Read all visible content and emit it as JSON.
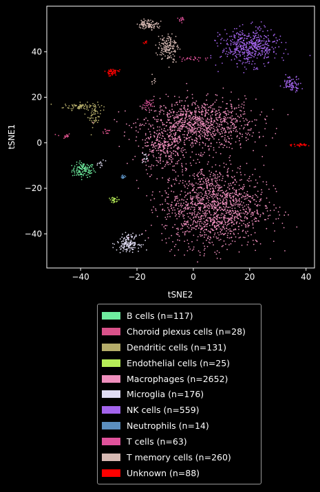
{
  "chart_data": {
    "type": "scatter",
    "title": "",
    "xlabel": "tSNE2",
    "ylabel": "tSNE1",
    "xlim": [
      -52,
      43
    ],
    "ylim": [
      -55,
      60
    ],
    "xticks": [
      -40,
      -20,
      0,
      20,
      40
    ],
    "yticks": [
      -40,
      -20,
      0,
      20,
      40
    ],
    "xtick_labels": [
      "−40",
      "−20",
      "0",
      "20",
      "40"
    ],
    "ytick_labels": [
      "−40",
      "−20",
      "0",
      "20",
      "40"
    ],
    "grid": false,
    "legend_position": "below",
    "series": [
      {
        "name": "B cells (n=117)",
        "color": "#6fed9f",
        "n": 117,
        "clusters": [
          {
            "cx": -39,
            "cy": -12,
            "sx": 2.0,
            "sy": 1.6,
            "n": 117
          }
        ]
      },
      {
        "name": "Choroid plexus cells (n=28)",
        "color": "#d9528a",
        "n": 28,
        "clusters": [
          {
            "cx": -46,
            "cy": 3,
            "sx": 1.3,
            "sy": 0.6,
            "n": 16
          },
          {
            "cx": -31,
            "cy": 5,
            "sx": 1.0,
            "sy": 0.8,
            "n": 12
          }
        ]
      },
      {
        "name": "Dendritic cells (n=131)",
        "color": "#b5ad6a",
        "n": 131,
        "clusters": [
          {
            "cx": -40,
            "cy": 16,
            "sx": 3.0,
            "sy": 0.8,
            "n": 80
          },
          {
            "cx": -35,
            "cy": 12,
            "sx": 1.2,
            "sy": 2.5,
            "n": 51
          }
        ]
      },
      {
        "name": "Endothelial cells (n=25)",
        "color": "#b7ee58",
        "n": 25,
        "clusters": [
          {
            "cx": -28,
            "cy": -25,
            "sx": 1.0,
            "sy": 0.5,
            "n": 25
          }
        ]
      },
      {
        "name": "Macrophages (n=2652)",
        "color": "#ef8fbd",
        "n": 2652,
        "clusters": [
          {
            "cx": 2,
            "cy": 8,
            "sx": 10.0,
            "sy": 5.5,
            "n": 1000
          },
          {
            "cx": 7,
            "cy": -28,
            "sx": 9.0,
            "sy": 9.0,
            "n": 1400
          },
          {
            "cx": -10,
            "cy": -3,
            "sx": 4.0,
            "sy": 5.0,
            "n": 252
          }
        ]
      },
      {
        "name": "Microglia (n=176)",
        "color": "#e0dcf3",
        "n": 176,
        "clusters": [
          {
            "cx": -23,
            "cy": -44,
            "sx": 2.0,
            "sy": 1.8,
            "n": 150
          },
          {
            "cx": -17,
            "cy": -7,
            "sx": 0.6,
            "sy": 1.2,
            "n": 14
          },
          {
            "cx": -33,
            "cy": -9,
            "sx": 0.8,
            "sy": 0.8,
            "n": 12
          }
        ]
      },
      {
        "name": "NK cells (n=559)",
        "color": "#a364ec",
        "n": 559,
        "clusters": [
          {
            "cx": 20,
            "cy": 42,
            "sx": 5.0,
            "sy": 4.0,
            "n": 480
          },
          {
            "cx": 35,
            "cy": 26,
            "sx": 1.6,
            "sy": 1.6,
            "n": 79
          }
        ]
      },
      {
        "name": "Neutrophils (n=14)",
        "color": "#5b8fbf",
        "n": 14,
        "clusters": [
          {
            "cx": -25,
            "cy": -15,
            "sx": 0.4,
            "sy": 0.4,
            "n": 14
          }
        ]
      },
      {
        "name": "T cells (n=63)",
        "color": "#e0529b",
        "n": 63,
        "clusters": [
          {
            "cx": -4,
            "cy": 54,
            "sx": 0.7,
            "sy": 0.6,
            "n": 15
          },
          {
            "cx": 0,
            "cy": 37,
            "sx": 3.0,
            "sy": 0.5,
            "n": 24
          },
          {
            "cx": -16,
            "cy": 17,
            "sx": 1.0,
            "sy": 1.0,
            "n": 24
          }
        ]
      },
      {
        "name": "T memory cells (n=260)",
        "color": "#d6b9b3",
        "n": 260,
        "clusters": [
          {
            "cx": -16,
            "cy": 52,
            "sx": 1.8,
            "sy": 1.0,
            "n": 100
          },
          {
            "cx": -9,
            "cy": 42,
            "sx": 1.8,
            "sy": 3.0,
            "n": 150
          },
          {
            "cx": -14,
            "cy": 27,
            "sx": 0.5,
            "sy": 1.0,
            "n": 10
          }
        ]
      },
      {
        "name": "Unknown (n=88)",
        "color": "#ff0000",
        "n": 88,
        "clusters": [
          {
            "cx": -29,
            "cy": 31,
            "sx": 1.2,
            "sy": 0.8,
            "n": 50
          },
          {
            "cx": -17,
            "cy": 44,
            "sx": 0.6,
            "sy": 0.3,
            "n": 8
          },
          {
            "cx": 37,
            "cy": -1,
            "sx": 2.0,
            "sy": 0.3,
            "n": 30
          }
        ]
      }
    ]
  }
}
